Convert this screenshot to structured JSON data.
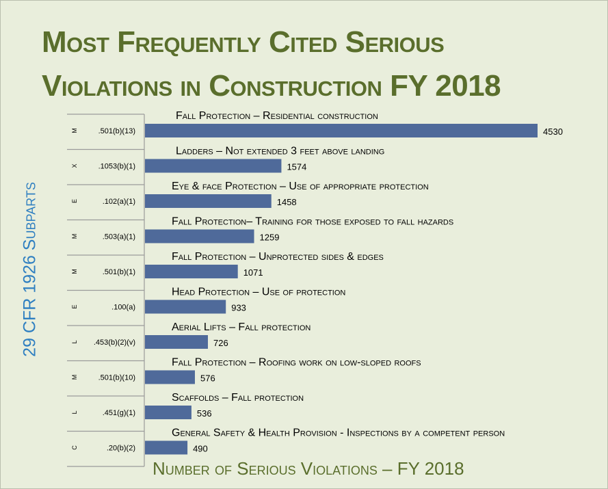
{
  "title_lines": [
    "Most Frequently Cited Serious",
    "Violations in Construction FY 2018"
  ],
  "ylabel": "29 CFR 1926 Subparts",
  "xlabel": "Number of Serious Violations – FY 2018",
  "colors": {
    "bar": "#4f6a9a",
    "title": "#5a6e2c",
    "ylabel": "#2f7fc1",
    "background": "#e9eedc"
  },
  "chart_data": {
    "type": "bar",
    "orientation": "horizontal",
    "title": "Most Frequently Cited Serious Violations in Construction FY 2018",
    "xlabel": "Number of Serious Violations – FY 2018",
    "ylabel": "29 CFR 1926 Subparts",
    "xlim": [
      0,
      4530
    ],
    "grid": false,
    "legend": "none",
    "rows": [
      {
        "subpart": "M",
        "section": ".501(b)(13)",
        "label": "Fall Protection – Residential construction",
        "value": 4530
      },
      {
        "subpart": "X",
        "section": ".1053(b)(1)",
        "label": "Ladders – Not extended 3 feet above landing",
        "value": 1574
      },
      {
        "subpart": "E",
        "section": ".102(a)(1)",
        "label": "Eye & face Protection – Use of appropriate protection",
        "value": 1458
      },
      {
        "subpart": "M",
        "section": ".503(a)(1)",
        "label": "Fall Protection– Training for those exposed to fall hazards",
        "value": 1259
      },
      {
        "subpart": "M",
        "section": ".501(b)(1)",
        "label": "Fall Protection – Unprotected sides & edges",
        "value": 1071
      },
      {
        "subpart": "E",
        "section": ".100(a)",
        "label": "Head Protection – Use of protection",
        "value": 933
      },
      {
        "subpart": "L",
        "section": ".453(b)(2)(v)",
        "label": "Aerial Lifts – Fall protection",
        "value": 726
      },
      {
        "subpart": "M",
        "section": ".501(b)(10)",
        "label": "Fall Protection – Roofing work on low-sloped roofs",
        "value": 576
      },
      {
        "subpart": "L",
        "section": ".451(g)(1)",
        "label": "Scaffolds – Fall protection",
        "value": 536
      },
      {
        "subpart": "C",
        "section": ".20(b)(2)",
        "label": "General Safety & Health Provision  - Inspections by a competent person",
        "value": 490
      }
    ]
  }
}
